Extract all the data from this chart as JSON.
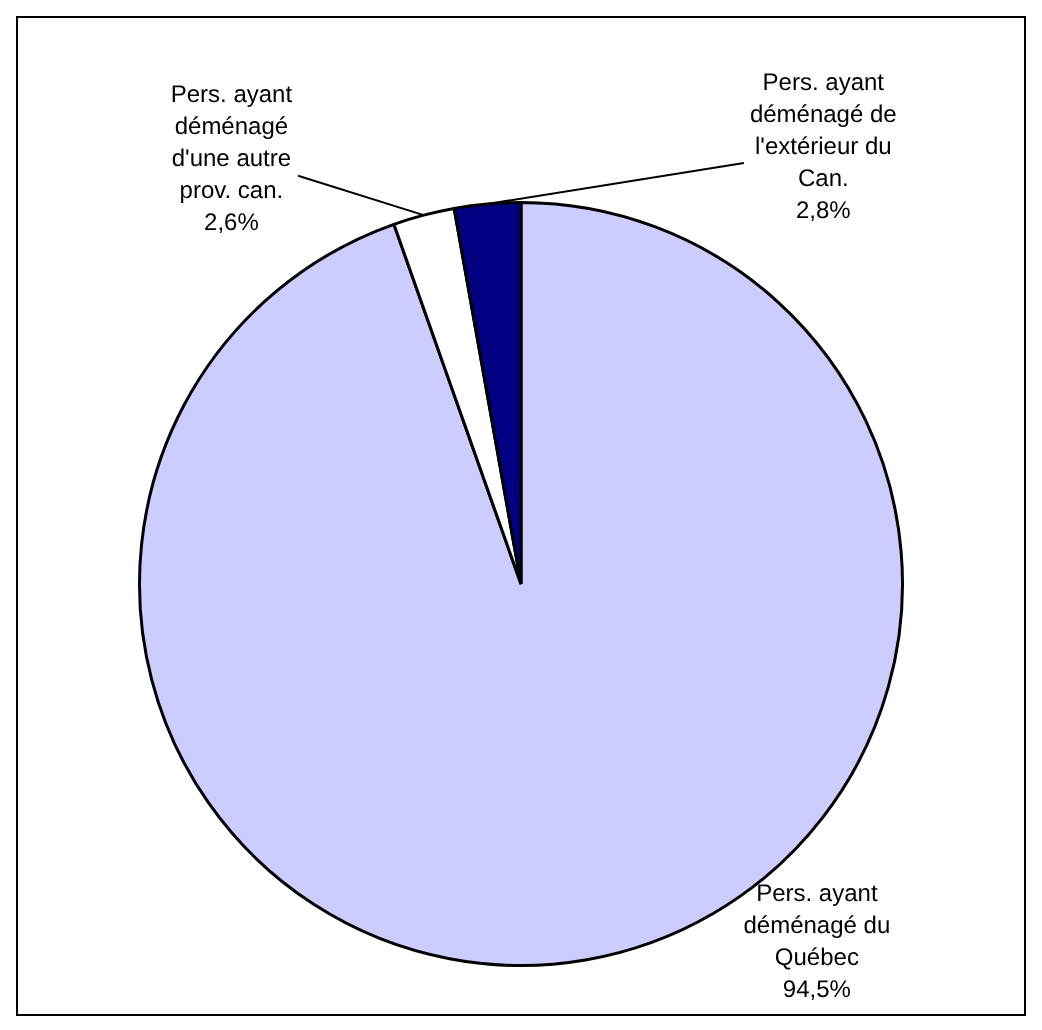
{
  "chart_data": {
    "type": "pie",
    "categories": [
      "Pers. ayant déménagé du Québec",
      "Pers. ayant déménagé d'une autre prov. can.",
      "Pers. ayant déménagé de l'extérieur du Can."
    ],
    "values": [
      94.5,
      2.6,
      2.8
    ],
    "colors": [
      "#ccccff",
      "#ffffff",
      "#000080"
    ],
    "value_labels": [
      "94,5%",
      "2,6%",
      "2,8%"
    ],
    "legend": false
  }
}
